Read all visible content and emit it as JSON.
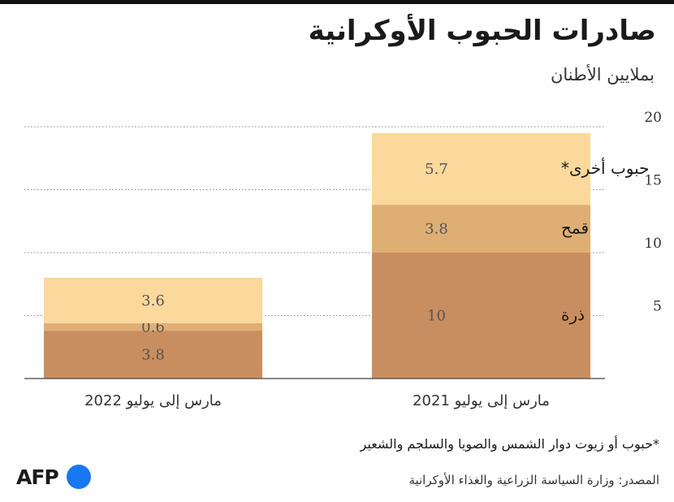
{
  "header": {
    "title": "صادرات الحبوب الأوكرانية",
    "subtitle": "بملايين الأطنان"
  },
  "colors": {
    "corn": "#c98e5f",
    "wheat": "#dfae74",
    "other": "#fbd89b",
    "grid": "#888888",
    "baseline": "#444444",
    "logo_dot": "#1877f2"
  },
  "chart_data": {
    "type": "bar",
    "stacked": true,
    "title": "صادرات الحبوب الأوكرانية",
    "subtitle": "بملايين الأطنان",
    "categories": [
      "مارس إلى يوليو 2021",
      "مارس إلى يوليو 2022"
    ],
    "series": [
      {
        "name": "ذرة",
        "values": [
          10,
          3.8
        ]
      },
      {
        "name": "قمح",
        "values": [
          3.8,
          0.6
        ]
      },
      {
        "name": "حبوب أخرى*",
        "values": [
          5.7,
          3.6
        ]
      }
    ],
    "y_ticks": [
      5,
      10,
      15,
      20
    ],
    "ylim": [
      0,
      20
    ],
    "y_axis_side": "right",
    "grid": true
  },
  "footer": {
    "footnote": "*حبوب أو زيوت دوار الشمس والصويا والسلجم والشعير",
    "source": "المصدر: وزارة السياسة الزراعية والغذاء الأوكرانية",
    "logo_text": "AFP"
  }
}
